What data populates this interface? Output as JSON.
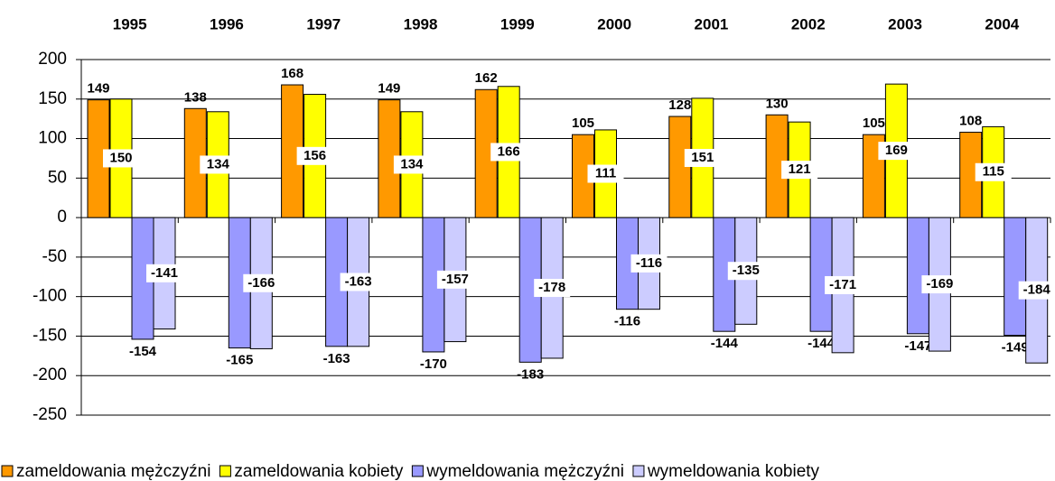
{
  "chart_data": {
    "type": "bar",
    "categories": [
      "1995",
      "1996",
      "1997",
      "1998",
      "1999",
      "2000",
      "2001",
      "2002",
      "2003",
      "2004"
    ],
    "series": [
      {
        "name": "zameldowania mężczyźni",
        "color": "#ff9900",
        "values": [
          149,
          138,
          168,
          149,
          162,
          105,
          128,
          130,
          105,
          108
        ]
      },
      {
        "name": "zameldowania kobiety",
        "color": "#ffff00",
        "values": [
          150,
          134,
          156,
          134,
          166,
          111,
          151,
          121,
          169,
          115
        ]
      },
      {
        "name": "wymeldowania mężczyźni",
        "color": "#9999ff",
        "values": [
          -154,
          -165,
          -163,
          -170,
          -183,
          -116,
          -144,
          -144,
          -147,
          -149
        ]
      },
      {
        "name": "wymeldowania kobiety",
        "color": "#ccccff",
        "values": [
          -141,
          -166,
          -163,
          -157,
          -178,
          -116,
          -135,
          -171,
          -169,
          -184
        ]
      }
    ],
    "ylim": [
      -250,
      200
    ],
    "yticks": [
      -250,
      -200,
      -150,
      -100,
      -50,
      0,
      50,
      100,
      150,
      200
    ],
    "grid": true,
    "legend": "bottom"
  }
}
